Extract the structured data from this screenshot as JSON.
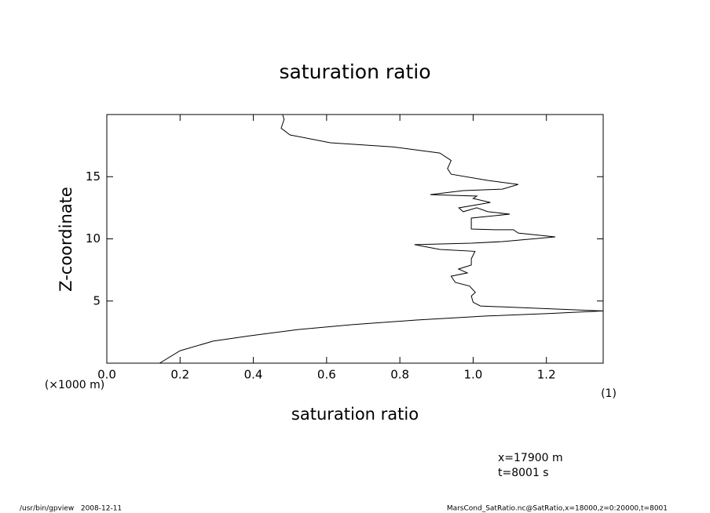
{
  "chart_data": {
    "type": "line",
    "title": "saturation ratio",
    "x_label": "saturation ratio",
    "x_unit": "(1)",
    "y_label": "Z-coordinate",
    "y_unit": "(×1000 m)",
    "annotations": [
      "x=17900 m",
      "t=8001 s"
    ],
    "footer_left": "/usr/bin/gpview   2008-12-11",
    "footer_right": "MarsCond_SatRatio.nc@SatRatio,x=18000,z=0:20000,t=8001",
    "color": "#000000",
    "xlim": [
      0,
      1.355
    ],
    "ylim": [
      0,
      20
    ],
    "xticks": [
      {
        "value": 0,
        "label": "0.0"
      },
      0.2,
      0.4,
      0.6,
      0.8,
      {
        "value": 1,
        "label": "1.0"
      },
      1.2
    ],
    "yticks": [
      5,
      10,
      15
    ],
    "x": [
      0.144,
      0.2,
      0.29,
      0.39,
      0.52,
      0.67,
      0.845,
      1.04,
      1.21,
      1.355,
      1.02,
      1.0,
      0.995,
      1.006,
      0.99,
      0.951,
      0.94,
      0.984,
      0.96,
      0.995,
      0.995,
      1.005,
      0.909,
      0.84,
      0.995,
      1.08,
      1.224,
      1.123,
      1.11,
      1.06,
      0.995,
      0.995,
      0.995,
      1.1,
      1.04,
      1.01,
      0.973,
      0.961,
      1.047,
      1.0,
      1.01,
      0.883,
      0.973,
      1.08,
      1.123,
      1.04,
      0.94,
      0.93,
      0.94,
      0.909,
      0.78,
      0.61,
      0.5,
      0.476,
      0.484,
      0.48
    ],
    "values": [
      0,
      1.0,
      1.77,
      2.2,
      2.7,
      3.1,
      3.47,
      3.8,
      4.0,
      4.2,
      4.6,
      4.9,
      5.4,
      5.7,
      6.2,
      6.5,
      7.0,
      7.26,
      7.57,
      7.89,
      8.4,
      9.0,
      9.15,
      9.53,
      9.65,
      9.78,
      10.16,
      10.47,
      10.73,
      10.73,
      10.79,
      11.23,
      11.67,
      11.99,
      12.18,
      12.5,
      12.18,
      12.49,
      12.93,
      13.25,
      13.44,
      13.56,
      13.88,
      14.0,
      14.38,
      14.7,
      15.2,
      15.65,
      16.3,
      16.9,
      17.4,
      17.73,
      18.36,
      18.9,
      19.6,
      20.0
    ]
  }
}
